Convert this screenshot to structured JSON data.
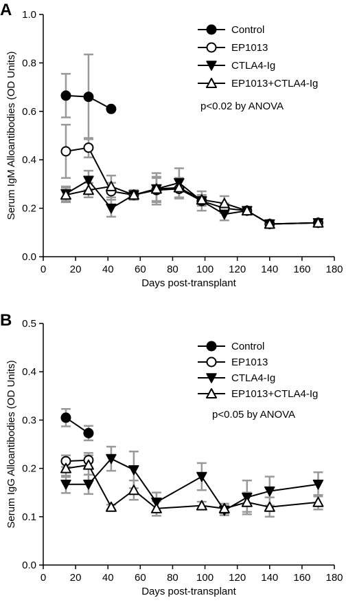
{
  "chart_data": [
    {
      "panel": "A",
      "type": "line",
      "xlabel": "Days post-transplant",
      "ylabel": "Serum IgM Alloantibodies (OD Units)",
      "xlim": [
        0,
        180
      ],
      "ylim": [
        0.0,
        1.0
      ],
      "xticks": [
        0,
        20,
        40,
        60,
        80,
        100,
        120,
        140,
        160,
        180
      ],
      "yticks": [
        "0.0",
        "0.2",
        "0.4",
        "0.6",
        "0.8",
        "1.0"
      ],
      "annotation": "p<0.02 by ANOVA",
      "legend_position": "top-right",
      "grid": false,
      "series": [
        {
          "name": "Control",
          "marker": "circle-filled",
          "x": [
            14,
            28,
            42
          ],
          "y": [
            0.665,
            0.66,
            0.61
          ],
          "err": [
            0.09,
            0.175,
            0
          ]
        },
        {
          "name": "EP1013",
          "marker": "circle-open",
          "x": [
            14,
            28,
            42,
            56,
            70,
            84,
            98,
            112,
            126,
            140,
            170
          ],
          "y": [
            0.435,
            0.45,
            0.27,
            0.255,
            0.275,
            0.28,
            0.23,
            0.2,
            0.19,
            0.135,
            0.14
          ],
          "err": [
            0.11,
            0.04,
            0.035,
            0.02,
            0.05,
            0.04,
            0.02,
            0.02,
            0.015,
            0.015,
            0.01
          ]
        },
        {
          "name": "CTLA4-Ig",
          "marker": "triangle-down-filled",
          "x": [
            14,
            28,
            42,
            56,
            70,
            84,
            98,
            112,
            126,
            140,
            170
          ],
          "y": [
            0.26,
            0.315,
            0.2,
            0.255,
            0.28,
            0.305,
            0.23,
            0.175,
            0.19,
            0.135,
            0.14
          ],
          "err": [
            0.03,
            0.04,
            0.035,
            0.02,
            0.065,
            0.06,
            0.04,
            0.025,
            0.015,
            0.015,
            0.01
          ]
        },
        {
          "name": "EP1013+CTLA4-Ig",
          "marker": "triangle-up-open",
          "x": [
            14,
            28,
            42,
            56,
            70,
            84,
            98,
            112,
            126,
            140,
            170
          ],
          "y": [
            0.255,
            0.275,
            0.29,
            0.255,
            0.28,
            0.285,
            0.235,
            0.22,
            0.19,
            0.135,
            0.14
          ],
          "err": [
            0.03,
            0.03,
            0.045,
            0.02,
            0.05,
            0.04,
            0.02,
            0.03,
            0.015,
            0.015,
            0.01
          ]
        }
      ]
    },
    {
      "panel": "B",
      "type": "line",
      "xlabel": "Days post-transplant",
      "ylabel": "Serum IgG Alloantibodies (OD Units)",
      "xlim": [
        0,
        180
      ],
      "ylim": [
        0.0,
        0.5
      ],
      "xticks": [
        0,
        20,
        40,
        60,
        80,
        100,
        120,
        140,
        160,
        180
      ],
      "yticks": [
        "0.0",
        "0.1",
        "0.2",
        "0.3",
        "0.4",
        "0.5"
      ],
      "annotation": "p<0.05 by ANOVA",
      "legend_position": "top-right",
      "grid": false,
      "series": [
        {
          "name": "Control",
          "marker": "circle-filled",
          "x": [
            14,
            28
          ],
          "y": [
            0.305,
            0.273
          ],
          "err": [
            0.018,
            0.015
          ]
        },
        {
          "name": "EP1013",
          "marker": "circle-open",
          "x": [
            14,
            28
          ],
          "y": [
            0.215,
            0.217
          ],
          "err": [
            0.012,
            0.015
          ]
        },
        {
          "name": "CTLA4-Ig",
          "marker": "triangle-down-filled",
          "x": [
            14,
            28,
            42,
            56,
            70,
            98,
            112,
            126,
            140,
            170
          ],
          "y": [
            0.167,
            0.167,
            0.22,
            0.197,
            0.13,
            0.183,
            0.113,
            0.14,
            0.153,
            0.167
          ],
          "err": [
            0.018,
            0.02,
            0.025,
            0.038,
            0.02,
            0.028,
            0.01,
            0.035,
            0.03,
            0.025
          ]
        },
        {
          "name": "EP1013+CTLA4-Ig",
          "marker": "triangle-up-open",
          "x": [
            14,
            28,
            42,
            56,
            70,
            98,
            112,
            126,
            140,
            170
          ],
          "y": [
            0.2,
            0.207,
            0.12,
            0.155,
            0.117,
            0.123,
            0.117,
            0.13,
            0.12,
            0.13
          ],
          "err": [
            0.018,
            0.02,
            0.005,
            0.02,
            0.015,
            0.008,
            0.01,
            0.02,
            0.02,
            0.015
          ]
        }
      ]
    }
  ]
}
